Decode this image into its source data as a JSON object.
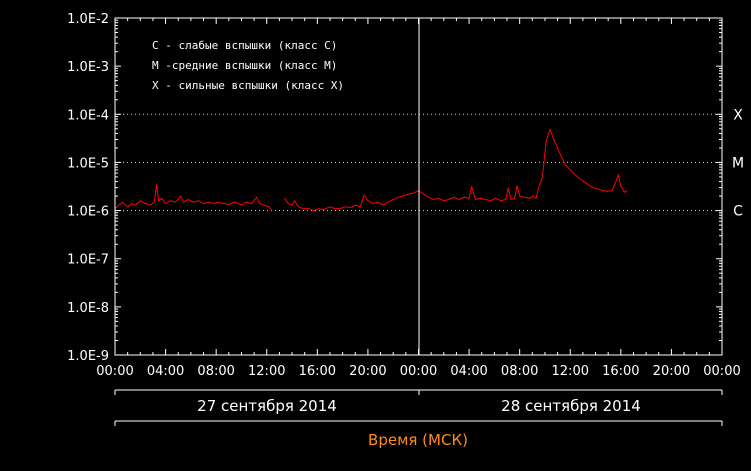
{
  "chart_data": {
    "type": "line",
    "xlabel": "Время (МСК)",
    "ylim": [
      1e-09,
      0.01
    ],
    "y_scale": "log",
    "y_tick_labels": [
      "1.0E-2",
      "1.0E-3",
      "1.0E-4",
      "1.0E-5",
      "1.0E-6",
      "1.0E-7",
      "1.0E-8",
      "1.0E-9"
    ],
    "x_range_hours": [
      0,
      48
    ],
    "x_tick_labels": [
      "00:00",
      "04:00",
      "08:00",
      "12:00",
      "16:00",
      "20:00",
      "00:00",
      "04:00",
      "08:00",
      "12:00",
      "16:00",
      "20:00",
      "00:00"
    ],
    "date_labels": [
      "27 сентября 2014",
      "28 сентября 2014"
    ],
    "legend": [
      "C - слабые вспышки (класс C)",
      "M -средние вспышки (класс M)",
      "X - сильные вспышки (класс X)"
    ],
    "levels": [
      {
        "label": "X",
        "value": 0.0001
      },
      {
        "label": "M",
        "value": 1e-05
      },
      {
        "label": "C",
        "value": 1e-06
      }
    ],
    "series": [
      {
        "color": "#ff0000",
        "segments": [
          [
            [
              0,
              1.1e-06
            ],
            [
              0.3,
              1.3e-06
            ],
            [
              0.6,
              1.5e-06
            ],
            [
              1.0,
              1.2e-06
            ],
            [
              1.3,
              1.4e-06
            ],
            [
              1.6,
              1.3e-06
            ],
            [
              2.0,
              1.6e-06
            ],
            [
              2.4,
              1.4e-06
            ],
            [
              2.8,
              1.3e-06
            ],
            [
              3.1,
              1.5e-06
            ],
            [
              3.3,
              3.5e-06
            ],
            [
              3.45,
              1.6e-06
            ],
            [
              3.7,
              1.8e-06
            ],
            [
              4.0,
              1.4e-06
            ],
            [
              4.4,
              1.6e-06
            ],
            [
              4.8,
              1.5e-06
            ],
            [
              5.2,
              2e-06
            ],
            [
              5.4,
              1.5e-06
            ],
            [
              5.8,
              1.7e-06
            ],
            [
              6.2,
              1.5e-06
            ],
            [
              6.6,
              1.6e-06
            ],
            [
              7.0,
              1.4e-06
            ],
            [
              7.4,
              1.5e-06
            ],
            [
              7.8,
              1.4e-06
            ],
            [
              8.2,
              1.5e-06
            ],
            [
              8.6,
              1.4e-06
            ],
            [
              9.0,
              1.35e-06
            ],
            [
              9.5,
              1.5e-06
            ],
            [
              10.0,
              1.3e-06
            ],
            [
              10.4,
              1.5e-06
            ],
            [
              10.8,
              1.4e-06
            ],
            [
              11.2,
              1.9e-06
            ],
            [
              11.4,
              1.4e-06
            ],
            [
              11.8,
              1.3e-06
            ],
            [
              12.2,
              1.2e-06
            ],
            [
              12.4,
              1e-06
            ]
          ],
          [
            [
              13.4,
              1.8e-06
            ],
            [
              13.7,
              1.4e-06
            ],
            [
              14.0,
              1.3e-06
            ],
            [
              14.2,
              1.6e-06
            ],
            [
              14.5,
              1.2e-06
            ],
            [
              14.9,
              1.1e-06
            ],
            [
              15.3,
              1.1e-06
            ],
            [
              15.7,
              1e-06
            ],
            [
              16.1,
              1.1e-06
            ],
            [
              16.5,
              1.05e-06
            ],
            [
              17.0,
              1.2e-06
            ],
            [
              17.4,
              1.1e-06
            ],
            [
              17.8,
              1.1e-06
            ],
            [
              18.2,
              1.2e-06
            ],
            [
              18.6,
              1.15e-06
            ],
            [
              19.0,
              1.3e-06
            ],
            [
              19.4,
              1.2e-06
            ],
            [
              19.7,
              2.1e-06
            ],
            [
              20.0,
              1.6e-06
            ],
            [
              20.4,
              1.4e-06
            ],
            [
              20.8,
              1.5e-06
            ],
            [
              21.2,
              1.3e-06
            ],
            [
              21.6,
              1.5e-06
            ],
            [
              22.0,
              1.7e-06
            ],
            [
              22.4,
              1.9e-06
            ],
            [
              22.8,
              2e-06
            ],
            [
              23.2,
              2.2e-06
            ],
            [
              23.6,
              2.3e-06
            ],
            [
              24.0,
              2.6e-06
            ],
            [
              24.4,
              2.2e-06
            ],
            [
              24.8,
              1.9e-06
            ],
            [
              25.2,
              1.7e-06
            ],
            [
              25.6,
              1.8e-06
            ],
            [
              26.0,
              1.6e-06
            ],
            [
              26.4,
              1.7e-06
            ],
            [
              26.8,
              1.9e-06
            ],
            [
              27.2,
              1.7e-06
            ],
            [
              27.6,
              1.9e-06
            ],
            [
              28.0,
              1.8e-06
            ],
            [
              28.2,
              3.2e-06
            ],
            [
              28.5,
              1.7e-06
            ],
            [
              28.9,
              1.8e-06
            ],
            [
              29.3,
              1.7e-06
            ],
            [
              29.7,
              1.6e-06
            ],
            [
              30.1,
              1.8e-06
            ],
            [
              30.5,
              1.6e-06
            ],
            [
              30.9,
              1.7e-06
            ],
            [
              31.1,
              3e-06
            ],
            [
              31.3,
              1.7e-06
            ],
            [
              31.6,
              1.8e-06
            ],
            [
              31.8,
              3.3e-06
            ],
            [
              32.0,
              2e-06
            ],
            [
              32.4,
              1.9e-06
            ],
            [
              32.8,
              1.8e-06
            ],
            [
              33.0,
              2e-06
            ],
            [
              33.3,
              1.8e-06
            ],
            [
              33.5,
              3e-06
            ],
            [
              33.8,
              5e-06
            ],
            [
              34.1,
              2.8e-05
            ],
            [
              34.4,
              4.8e-05
            ],
            [
              34.7,
              3e-05
            ],
            [
              35.0,
              2e-05
            ],
            [
              35.3,
              1.3e-05
            ],
            [
              35.6,
              9e-06
            ],
            [
              36.0,
              7e-06
            ],
            [
              36.4,
              5.5e-06
            ],
            [
              36.8,
              4.5e-06
            ],
            [
              37.2,
              3.8e-06
            ],
            [
              37.6,
              3.2e-06
            ],
            [
              38.0,
              2.9e-06
            ],
            [
              38.4,
              2.7e-06
            ],
            [
              38.9,
              2.5e-06
            ],
            [
              39.3,
              2.6e-06
            ],
            [
              39.6,
              4e-06
            ],
            [
              39.8,
              5.5e-06
            ],
            [
              40.0,
              3.2e-06
            ],
            [
              40.3,
              2.4e-06
            ],
            [
              40.5,
              2.6e-06
            ]
          ]
        ]
      }
    ]
  }
}
